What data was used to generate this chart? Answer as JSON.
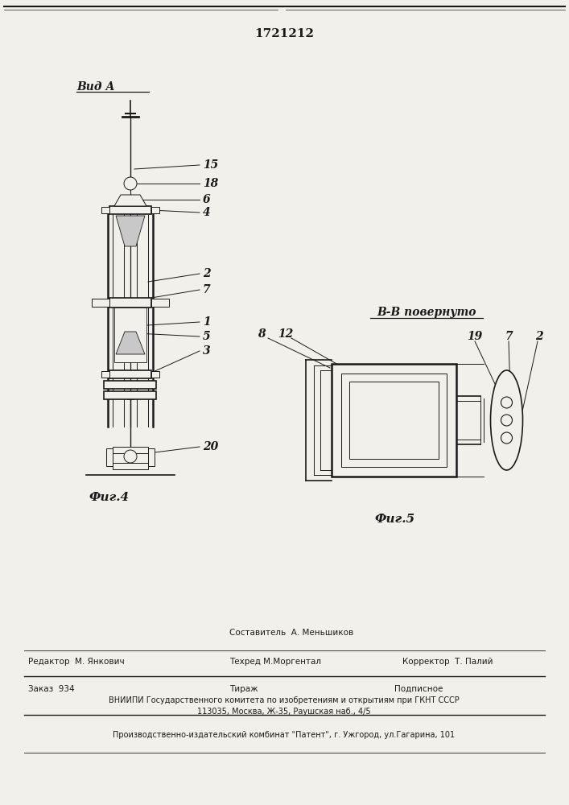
{
  "patent_number": "1721212",
  "bg_color": "#f2f0eb",
  "line_color": "#1a1a1a",
  "fig4_label": "Фиг.4",
  "fig5_label": "Фиг.5",
  "vida_label": "Вид А",
  "bv_label": "В-В повернуто",
  "footer_line1_left": "Редактор  М. Янкович",
  "footer_line1_center_top": "Составитель  А. Меньшиков",
  "footer_line1_center_bot": "Техред М.Моргентал",
  "footer_line1_right": "Корректор  Т. Палий",
  "footer_line2_left": "Заказ  934",
  "footer_line2_center": "Тираж",
  "footer_line2_right": "Подписное",
  "footer_line3": "ВНИИПИ Государственного комитета по изобретениям и открытиям при ГКНТ СССР",
  "footer_line4": "113035, Москва, Ж-35, Раушская наб., 4/5",
  "footer_line5": "Производственно-издательский комбинат \"Патент\", г. Ужгород, ул.Гагарина, 101"
}
